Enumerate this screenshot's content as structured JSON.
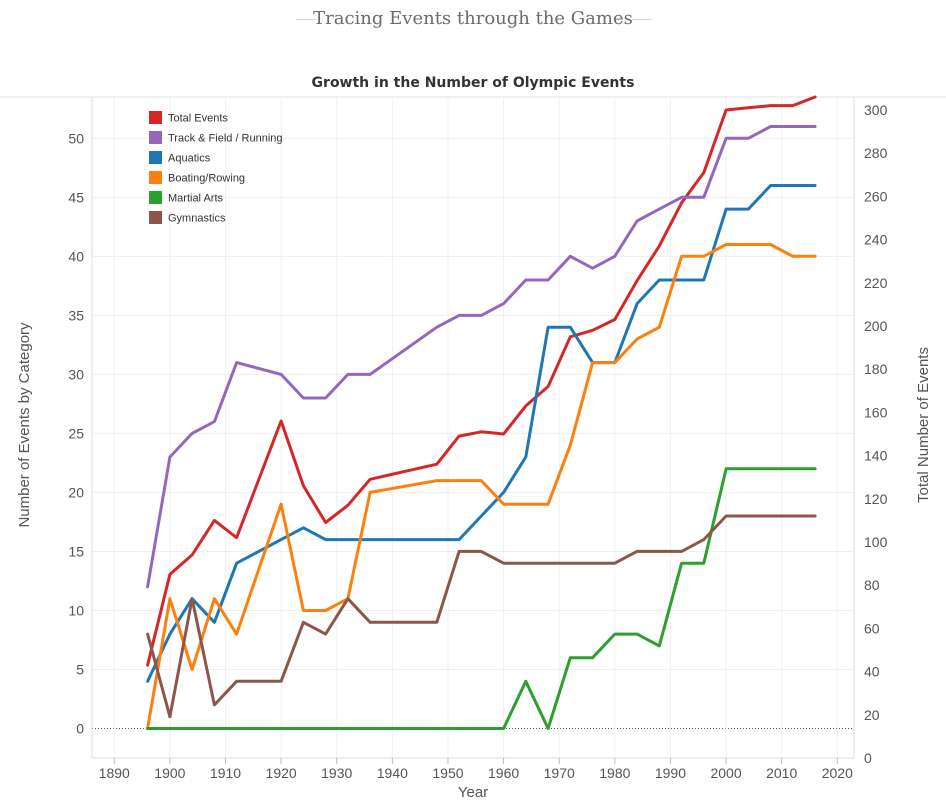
{
  "page": {
    "title": "Tracing Events through the Games"
  },
  "chart_data": {
    "type": "line",
    "title": "Growth in the Number of Olympic Events",
    "xlabel": "Year",
    "ylabel": "Number of Events by Category",
    "y2label": "Total Number of Events",
    "xlim": [
      1886,
      2023
    ],
    "ylim": [
      -2.5,
      53.5
    ],
    "y2lim": [
      0,
      306
    ],
    "x_ticks": [
      1890,
      1900,
      1910,
      1920,
      1930,
      1940,
      1950,
      1960,
      1970,
      1980,
      1990,
      2000,
      2010,
      2020
    ],
    "y_ticks": [
      0,
      5,
      10,
      15,
      20,
      25,
      30,
      35,
      40,
      45,
      50
    ],
    "y2_ticks": [
      0,
      20,
      40,
      60,
      80,
      100,
      120,
      140,
      160,
      180,
      200,
      220,
      240,
      260,
      280,
      300
    ],
    "grid": true,
    "legend_position": "top-left",
    "series": [
      {
        "name": "Total Events",
        "color": "#d62728",
        "axis": "right",
        "x": [
          1896,
          1900,
          1904,
          1908,
          1912,
          1920,
          1924,
          1928,
          1932,
          1936,
          1948,
          1952,
          1956,
          1960,
          1964,
          1968,
          1972,
          1976,
          1980,
          1984,
          1988,
          1992,
          1996,
          2000,
          2004,
          2008,
          2012,
          2016
        ],
        "values": [
          43,
          85,
          94,
          110,
          102,
          156,
          126,
          109,
          117,
          129,
          136,
          149,
          151,
          150,
          163,
          172,
          195,
          198,
          203,
          221,
          237,
          257,
          271,
          300,
          301,
          302,
          302,
          306
        ]
      },
      {
        "name": "Track & Field / Running",
        "color": "#9467bd",
        "axis": "left",
        "x": [
          1896,
          1900,
          1904,
          1908,
          1912,
          1920,
          1924,
          1928,
          1932,
          1936,
          1948,
          1952,
          1956,
          1960,
          1964,
          1968,
          1972,
          1976,
          1980,
          1984,
          1988,
          1992,
          1996,
          2000,
          2004,
          2008,
          2012,
          2016
        ],
        "values": [
          12,
          23,
          25,
          26,
          31,
          30,
          28,
          28,
          30,
          30,
          34,
          35,
          35,
          36,
          38,
          38,
          40,
          39,
          40,
          43,
          44,
          45,
          45,
          50,
          50,
          51,
          51,
          51
        ]
      },
      {
        "name": "Aquatics",
        "color": "#1f77b4",
        "axis": "left",
        "x": [
          1896,
          1900,
          1904,
          1908,
          1912,
          1920,
          1924,
          1928,
          1932,
          1936,
          1948,
          1952,
          1956,
          1960,
          1964,
          1968,
          1972,
          1976,
          1980,
          1984,
          1988,
          1992,
          1996,
          2000,
          2004,
          2008,
          2012,
          2016
        ],
        "values": [
          4,
          8,
          11,
          9,
          14,
          16,
          17,
          16,
          16,
          16,
          16,
          16,
          18,
          20,
          23,
          34,
          34,
          31,
          31,
          36,
          38,
          38,
          38,
          44,
          44,
          46,
          46,
          46
        ]
      },
      {
        "name": "Boating/Rowing",
        "color": "#ff7f0e",
        "axis": "left",
        "x": [
          1896,
          1900,
          1904,
          1908,
          1912,
          1920,
          1924,
          1928,
          1932,
          1936,
          1948,
          1952,
          1956,
          1960,
          1964,
          1968,
          1972,
          1976,
          1980,
          1984,
          1988,
          1992,
          1996,
          2000,
          2004,
          2008,
          2012,
          2016
        ],
        "values": [
          0,
          11,
          5,
          11,
          8,
          19,
          10,
          10,
          11,
          20,
          21,
          21,
          21,
          19,
          19,
          19,
          24,
          31,
          31,
          33,
          34,
          40,
          40,
          41,
          41,
          41,
          40,
          40
        ]
      },
      {
        "name": "Martial Arts",
        "color": "#2ca02c",
        "axis": "left",
        "x": [
          1896,
          1900,
          1904,
          1908,
          1912,
          1920,
          1924,
          1928,
          1932,
          1936,
          1948,
          1952,
          1956,
          1960,
          1964,
          1968,
          1972,
          1976,
          1980,
          1984,
          1988,
          1992,
          1996,
          2000,
          2004,
          2008,
          2012,
          2016
        ],
        "values": [
          0,
          0,
          0,
          0,
          0,
          0,
          0,
          0,
          0,
          0,
          0,
          0,
          0,
          0,
          4,
          0,
          6,
          6,
          8,
          8,
          7,
          14,
          14,
          22,
          22,
          22,
          22,
          22
        ]
      },
      {
        "name": "Gymnastics",
        "color": "#8c564b",
        "axis": "left",
        "x": [
          1896,
          1900,
          1904,
          1908,
          1912,
          1920,
          1924,
          1928,
          1932,
          1936,
          1948,
          1952,
          1956,
          1960,
          1964,
          1968,
          1972,
          1976,
          1980,
          1984,
          1988,
          1992,
          1996,
          2000,
          2004,
          2008,
          2012,
          2016
        ],
        "values": [
          8,
          1,
          11,
          2,
          4,
          4,
          9,
          8,
          11,
          9,
          9,
          15,
          15,
          14,
          14,
          14,
          14,
          14,
          14,
          15,
          15,
          15,
          16,
          18,
          18,
          18,
          18,
          18
        ]
      }
    ]
  }
}
